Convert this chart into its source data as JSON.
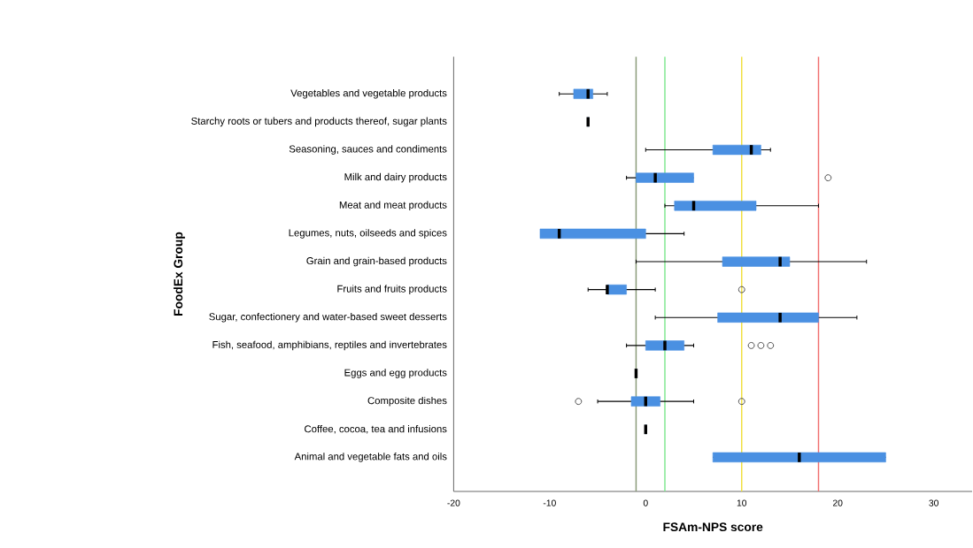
{
  "chart_data": {
    "type": "box",
    "orientation": "horizontal",
    "xlabel": "FSAm-NPS score",
    "ylabel": "FoodEx Group",
    "color": "#4a90e2",
    "categories": [
      "Vegetables and vegetable products",
      "Starchy roots or tubers and products thereof, sugar plants",
      "Seasoning, sauces and condiments",
      "Milk and dairy products",
      "Meat and meat products",
      "Legumes, nuts, oilseeds and spices",
      "Grain and grain-based  products",
      "Fruits and fruits products",
      "Sugar, confectionery and water-based sweet desserts",
      "Fish, seafood, amphibians, reptiles and invertebrates",
      "Eggs and egg products",
      "Composite dishes",
      "Coffee, cocoa, tea and infusions",
      "Animal and vegetable fats and oils"
    ],
    "boxes": [
      {
        "low": -9,
        "q1": -7.5,
        "median": -6,
        "q3": -5.5,
        "high": -4
      },
      {
        "low": -6,
        "q1": -6,
        "median": -6,
        "q3": -6,
        "high": -6
      },
      {
        "low": 0,
        "q1": 7,
        "median": 11,
        "q3": 12,
        "high": 13
      },
      {
        "low": -2,
        "q1": -1,
        "median": 1,
        "q3": 5,
        "high": 5,
        "outliers": [
          19
        ]
      },
      {
        "low": 2,
        "q1": 3,
        "median": 5,
        "q3": 11.5,
        "high": 18
      },
      {
        "low": -11,
        "q1": -11,
        "median": -9,
        "q3": 0,
        "high": 4
      },
      {
        "low": -1,
        "q1": 8,
        "median": 14,
        "q3": 15,
        "high": 23
      },
      {
        "low": -6,
        "q1": -4,
        "median": -4,
        "q3": -2,
        "high": 1,
        "outliers": [
          10
        ]
      },
      {
        "low": 1,
        "q1": 7.5,
        "median": 14,
        "q3": 18,
        "high": 22
      },
      {
        "low": -2,
        "q1": 0,
        "median": 2,
        "q3": 4,
        "high": 5,
        "outliers": [
          11,
          12,
          13
        ]
      },
      {
        "low": -1,
        "q1": -1,
        "median": -1,
        "q3": -1,
        "high": -1
      },
      {
        "low": -5,
        "q1": -1.5,
        "median": 0,
        "q3": 1.5,
        "high": 5,
        "outliers": [
          -7,
          10
        ]
      },
      {
        "low": 0,
        "q1": 0,
        "median": 0,
        "q3": 0,
        "high": 0
      },
      {
        "low": 7,
        "q1": 7,
        "median": 16,
        "q3": 25,
        "high": 25
      }
    ],
    "xlim": [
      -20,
      34
    ],
    "xticks": [
      -20,
      -10,
      0,
      10,
      20,
      30
    ],
    "ref_lines": [
      {
        "axis": "x",
        "value": -1,
        "color": "#8a9a78"
      },
      {
        "axis": "x",
        "value": 2,
        "color": "#80e890"
      },
      {
        "axis": "x",
        "value": 10,
        "color": "#f0e040"
      },
      {
        "axis": "x",
        "value": 18,
        "color": "#f07070"
      }
    ]
  }
}
